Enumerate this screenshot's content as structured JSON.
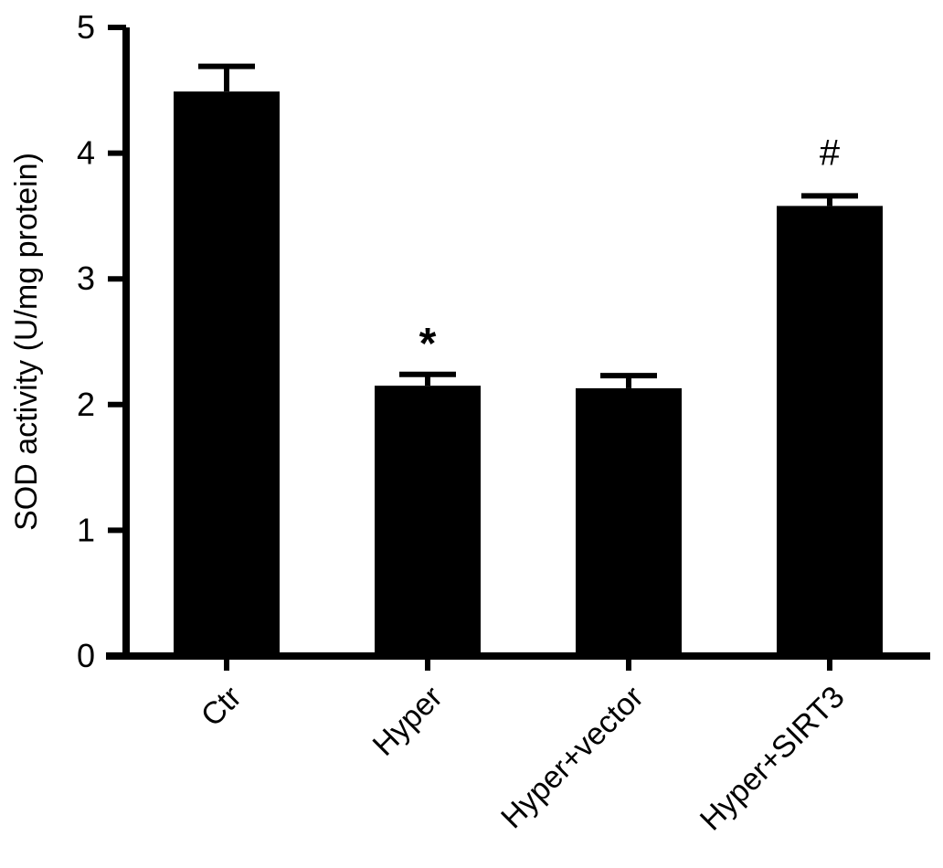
{
  "chart_data": {
    "type": "bar",
    "title": "",
    "xlabel": "",
    "ylabel": "SOD activity (U/mg protein)",
    "categories": [
      "Ctr",
      "Hyper",
      "Hyper+vector",
      "Hyper+SIRT3"
    ],
    "values": [
      4.49,
      2.15,
      2.13,
      3.58
    ],
    "errors": [
      0.2,
      0.09,
      0.1,
      0.08
    ],
    "annotations": [
      "",
      "*",
      "",
      "#"
    ],
    "ylim": [
      0,
      5
    ],
    "yticks": [
      "0",
      "1",
      "2",
      "3",
      "4",
      "5"
    ],
    "grid": false,
    "legend": "none",
    "bar_color": "#000000"
  }
}
